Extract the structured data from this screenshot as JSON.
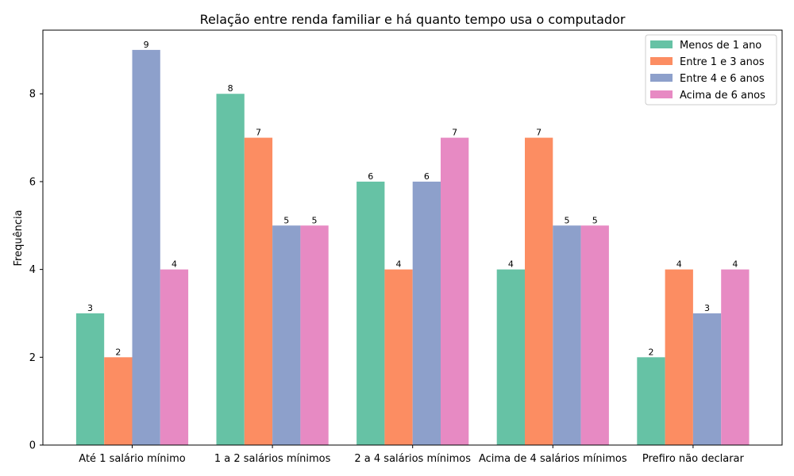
{
  "chart_data": {
    "type": "bar",
    "title": "Relação entre renda familiar e há quanto tempo usa o computador",
    "xlabel": "",
    "ylabel": "Frequência",
    "ylim": [
      0,
      9.45
    ],
    "yticks": [
      0,
      2,
      4,
      6,
      8
    ],
    "grid": false,
    "legend_position": "top-right",
    "categories": [
      "Até 1 salário mínimo",
      "1 a 2 salários mínimos",
      "2 a 4 salários mínimos",
      "Acima de 4 salários mínimos",
      "Prefiro não declarar"
    ],
    "series": [
      {
        "name": "Menos de 1 ano",
        "color": "#66c2a5",
        "values": [
          3,
          8,
          6,
          4,
          2
        ]
      },
      {
        "name": "Entre 1 e 3 anos",
        "color": "#fc8d62",
        "values": [
          2,
          7,
          4,
          7,
          4
        ]
      },
      {
        "name": "Entre 4 e 6 anos",
        "color": "#8da0cb",
        "values": [
          9,
          5,
          6,
          5,
          3
        ]
      },
      {
        "name": "Acima de 6 anos",
        "color": "#e78ac3",
        "values": [
          4,
          5,
          7,
          5,
          4
        ]
      }
    ]
  }
}
